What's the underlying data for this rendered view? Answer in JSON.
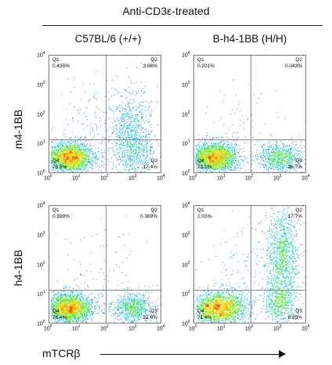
{
  "chart_data": {
    "type": "scatter",
    "title": "Anti-CD3ε-treated",
    "column_labels": [
      "C57BL/6 (+/+)",
      "B-h4-1BB (H/H)"
    ],
    "row_labels": [
      "m4-1BB",
      "h4-1BB"
    ],
    "xlabel": "mTCRβ",
    "tick_labels": [
      "10",
      "10",
      "10",
      "10",
      "10"
    ],
    "tick_exponents": [
      "0",
      "1",
      "2",
      "3",
      "4"
    ],
    "xlim": [
      1,
      10000
    ],
    "ylim": [
      1,
      10000
    ],
    "x_scale": "log",
    "y_scale": "log",
    "panels": [
      {
        "row": 0,
        "col": 0,
        "quadrants": {
          "Q1": "0.435%",
          "Q2": "3.66%",
          "Q3": "17.4%",
          "Q4": "78.5%"
        }
      },
      {
        "row": 0,
        "col": 1,
        "quadrants": {
          "Q1": "0.201%",
          "Q2": "0.043%",
          "Q3": "26.7%",
          "Q4": "73.1%"
        }
      },
      {
        "row": 1,
        "col": 0,
        "quadrants": {
          "Q1": "0.599%",
          "Q2": "0.389%",
          "Q3": "22.6%",
          "Q4": "76.4%"
        }
      },
      {
        "row": 1,
        "col": 1,
        "quadrants": {
          "Q1": "2.03%",
          "Q2": "17.7%",
          "Q3": "8.85%",
          "Q4": "71.4%"
        }
      }
    ],
    "colors": {
      "low_density": "#1a2bd6",
      "mid_density": "#19c2e6",
      "high_density": "#6ee83a",
      "peak_density": "#f6e21e",
      "gate": "#8a8a8a"
    }
  }
}
